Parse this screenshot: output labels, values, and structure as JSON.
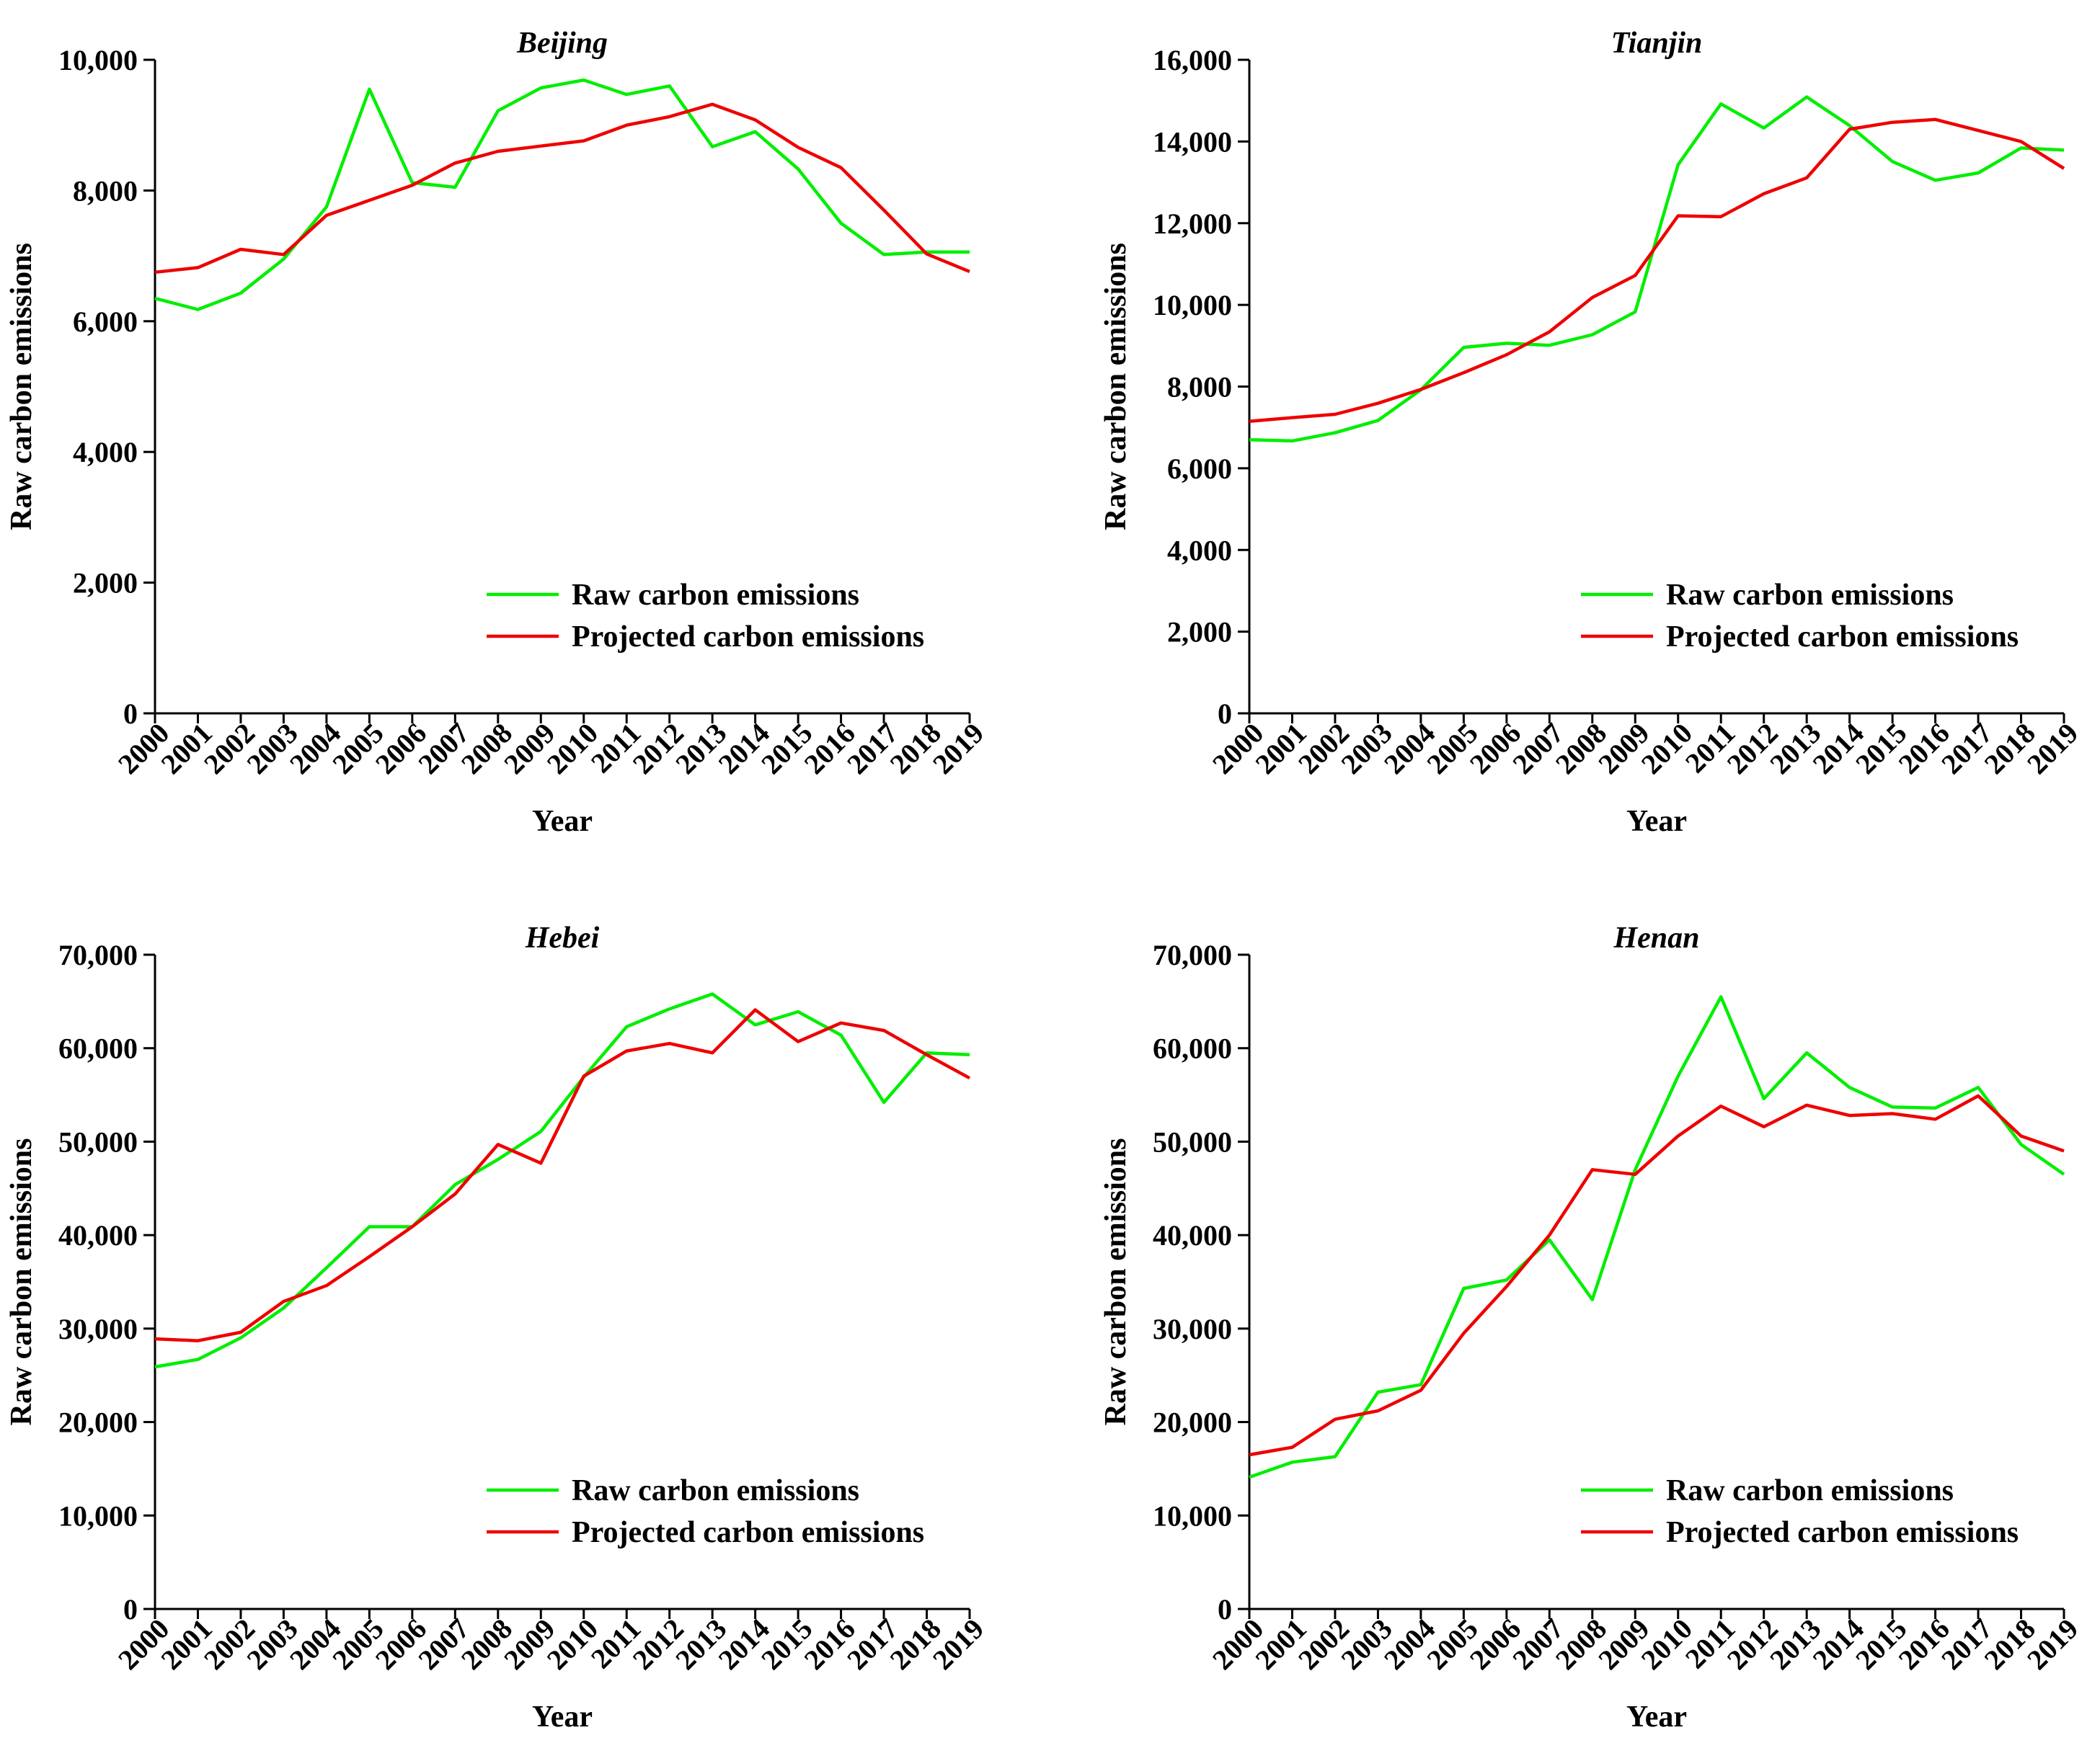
{
  "colors": {
    "raw": "#00ee00",
    "projected": "#ee0000",
    "axis": "#000000"
  },
  "chart_data": [
    {
      "type": "line",
      "title": "Beijing",
      "xlabel": "Year",
      "ylabel": "Raw carbon emissions",
      "ylim": [
        0,
        10000
      ],
      "yticks": [
        0,
        2000,
        4000,
        6000,
        8000,
        10000
      ],
      "ytick_labels": [
        "0",
        "2,000",
        "4,000",
        "6,000",
        "8,000",
        "10,000"
      ],
      "categories": [
        "2000",
        "2001",
        "2002",
        "2003",
        "2004",
        "2005",
        "2006",
        "2007",
        "2008",
        "2009",
        "2010",
        "2011",
        "2012",
        "2013",
        "2014",
        "2015",
        "2016",
        "2017",
        "2018",
        "2019"
      ],
      "legend_position": "lower-right",
      "grid": false,
      "series": [
        {
          "name": "Raw carbon emissions",
          "color": "raw",
          "values": [
            6350,
            6180,
            6430,
            6950,
            7750,
            9550,
            8120,
            8050,
            9220,
            9570,
            9690,
            9470,
            9600,
            8670,
            8900,
            8330,
            7500,
            7020,
            7060,
            7060
          ]
        },
        {
          "name": "Projected carbon emissions",
          "color": "projected",
          "values": [
            6750,
            6820,
            7100,
            7020,
            7620,
            7850,
            8080,
            8420,
            8600,
            8680,
            8760,
            9000,
            9130,
            9320,
            9080,
            8660,
            8350,
            7700,
            7030,
            6760
          ]
        }
      ]
    },
    {
      "type": "line",
      "title": "Tianjin",
      "xlabel": "Year",
      "ylabel": "Raw carbon emissions",
      "ylim": [
        0,
        16000
      ],
      "yticks": [
        0,
        2000,
        4000,
        6000,
        8000,
        10000,
        12000,
        14000,
        16000
      ],
      "ytick_labels": [
        "0",
        "2,000",
        "4,000",
        "6,000",
        "8,000",
        "10,000",
        "12,000",
        "14,000",
        "16,000"
      ],
      "categories": [
        "2000",
        "2001",
        "2002",
        "2003",
        "2004",
        "2005",
        "2006",
        "2007",
        "2008",
        "2009",
        "2010",
        "2011",
        "2012",
        "2013",
        "2014",
        "2015",
        "2016",
        "2017",
        "2018",
        "2019"
      ],
      "legend_position": "lower-right",
      "grid": false,
      "series": [
        {
          "name": "Raw carbon emissions",
          "color": "raw",
          "values": [
            6700,
            6670,
            6870,
            7170,
            7920,
            8960,
            9060,
            9010,
            9270,
            9830,
            13430,
            14920,
            14330,
            15090,
            14390,
            13510,
            13050,
            13230,
            13840,
            13790
          ]
        },
        {
          "name": "Projected carbon emissions",
          "color": "projected",
          "values": [
            7150,
            7240,
            7320,
            7590,
            7930,
            8340,
            8780,
            9340,
            10180,
            10720,
            12180,
            12160,
            12720,
            13110,
            14300,
            14470,
            14540,
            14270,
            14000,
            13340
          ]
        }
      ]
    },
    {
      "type": "line",
      "title": "Hebei",
      "xlabel": "Year",
      "ylabel": "Raw carbon emissions",
      "ylim": [
        0,
        70000
      ],
      "yticks": [
        0,
        10000,
        20000,
        30000,
        40000,
        50000,
        60000,
        70000
      ],
      "ytick_labels": [
        "0",
        "10,000",
        "20,000",
        "30,000",
        "40,000",
        "50,000",
        "60,000",
        "70,000"
      ],
      "categories": [
        "2000",
        "2001",
        "2002",
        "2003",
        "2004",
        "2005",
        "2006",
        "2007",
        "2008",
        "2009",
        "2010",
        "2011",
        "2012",
        "2013",
        "2014",
        "2015",
        "2016",
        "2017",
        "2018",
        "2019"
      ],
      "legend_position": "lower-right",
      "grid": false,
      "series": [
        {
          "name": "Raw carbon emissions",
          "color": "raw",
          "values": [
            25900,
            26700,
            29000,
            32200,
            36500,
            40900,
            40900,
            45400,
            48100,
            51100,
            56900,
            62300,
            64200,
            65800,
            62500,
            63900,
            61400,
            54200,
            59500,
            59300
          ]
        },
        {
          "name": "Projected carbon emissions",
          "color": "projected",
          "values": [
            28900,
            28700,
            29600,
            32900,
            34600,
            37700,
            40900,
            44400,
            49700,
            47700,
            57000,
            59700,
            60500,
            59500,
            64100,
            60700,
            62700,
            61900,
            59300,
            56800
          ]
        }
      ]
    },
    {
      "type": "line",
      "title": "Henan",
      "xlabel": "Year",
      "ylabel": "Raw carbon emissions",
      "ylim": [
        0,
        70000
      ],
      "yticks": [
        0,
        10000,
        20000,
        30000,
        40000,
        50000,
        60000,
        70000
      ],
      "ytick_labels": [
        "0",
        "10,000",
        "20,000",
        "30,000",
        "40,000",
        "50,000",
        "60,000",
        "70,000"
      ],
      "categories": [
        "2000",
        "2001",
        "2002",
        "2003",
        "2004",
        "2005",
        "2006",
        "2007",
        "2008",
        "2009",
        "2010",
        "2011",
        "2012",
        "2013",
        "2014",
        "2015",
        "2016",
        "2017",
        "2018",
        "2019"
      ],
      "legend_position": "lower-right",
      "grid": false,
      "series": [
        {
          "name": "Raw carbon emissions",
          "color": "raw",
          "values": [
            14100,
            15700,
            16300,
            23200,
            24000,
            34300,
            35200,
            39500,
            33100,
            47000,
            57000,
            65500,
            54600,
            59500,
            55800,
            53700,
            53600,
            55800,
            49700,
            46500
          ]
        },
        {
          "name": "Projected carbon emissions",
          "color": "projected",
          "values": [
            16500,
            17300,
            20300,
            21200,
            23400,
            29500,
            34500,
            40000,
            47000,
            46500,
            50600,
            53800,
            51600,
            53900,
            52800,
            53000,
            52400,
            54900,
            50600,
            49000
          ]
        }
      ]
    }
  ]
}
